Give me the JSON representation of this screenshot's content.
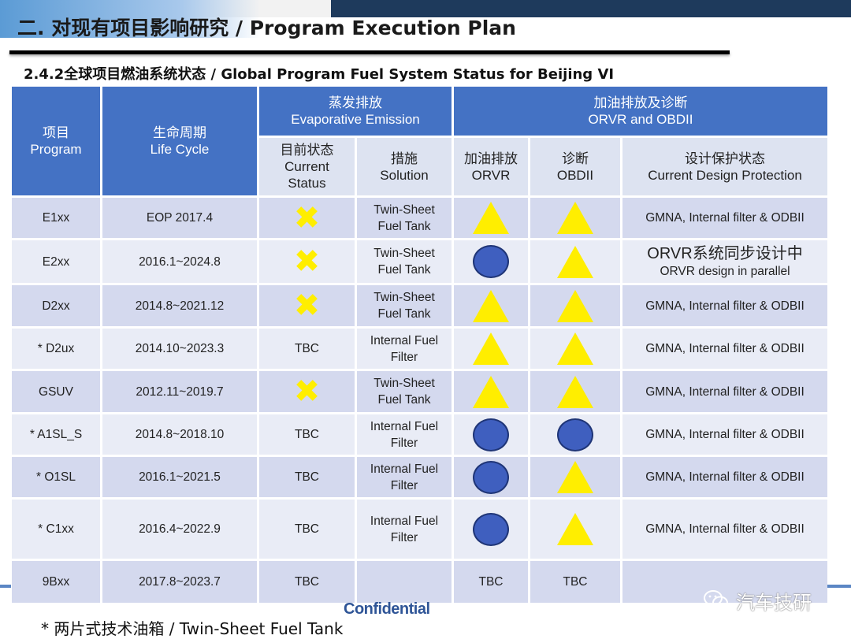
{
  "header": {
    "title": "二.  对现有项目影响研究 / Program Execution Plan"
  },
  "section": {
    "title": "2.4.2全球项目燃油系统状态 / Global Program Fuel System Status for Beijing VI"
  },
  "table": {
    "headers": {
      "program_zh": "项目",
      "program_en": "Program",
      "lifecycle_zh": "生命周期",
      "lifecycle_en": "Life Cycle",
      "evap_zh": "蒸发排放",
      "evap_en": "Evaporative Emission",
      "orvr_obd_zh": "加油排放及诊断",
      "orvr_obd_en": "ORVR and OBDII",
      "current_zh": "目前状态",
      "current_en_1": "Current",
      "current_en_2": "Status",
      "solution_zh": "措施",
      "solution_en": "Solution",
      "orvr_zh": "加油排放",
      "orvr_en": "ORVR",
      "obd_zh": "诊断",
      "obd_en": "OBDII",
      "design_zh": "设计保护状态",
      "design_en": "Current Design Protection"
    },
    "legend_symbols": {
      "cross": "✖",
      "triangle_color": "#ffee00",
      "circle_color": "#3f5fbf"
    },
    "rows": [
      {
        "program": "E1xx",
        "lifecycle": "EOP 2017.4",
        "status": "cross",
        "status_text": "",
        "solution_1": "Twin-Sheet",
        "solution_2": "Fuel Tank",
        "orvr": "triangle",
        "orvr_text": "",
        "obd": "triangle",
        "obd_text": "",
        "design": "GMNA, Internal filter & ODBII"
      },
      {
        "program": "E2xx",
        "lifecycle": "2016.1~2024.8",
        "status": "cross",
        "status_text": "",
        "solution_1": "Twin-Sheet",
        "solution_2": "Fuel Tank",
        "orvr": "circle",
        "orvr_text": "",
        "obd": "triangle",
        "obd_text": "",
        "design_zh": "ORVR系统同步设计中",
        "design_en": "ORVR design in parallel"
      },
      {
        "program": "D2xx",
        "lifecycle": "2014.8~2021.12",
        "status": "cross",
        "status_text": "",
        "solution_1": "Twin-Sheet",
        "solution_2": "Fuel Tank",
        "orvr": "triangle",
        "orvr_text": "",
        "obd": "triangle",
        "obd_text": "",
        "design": "GMNA, Internal filter & ODBII"
      },
      {
        "program": "* D2ux",
        "lifecycle": "2014.10~2023.3",
        "status": "text",
        "status_text": "TBC",
        "solution_1": "Internal Fuel",
        "solution_2": "Filter",
        "orvr": "triangle",
        "orvr_text": "",
        "obd": "triangle",
        "obd_text": "",
        "design": "GMNA, Internal filter & ODBII"
      },
      {
        "program": "GSUV",
        "lifecycle": "2012.11~2019.7",
        "status": "cross",
        "status_text": "",
        "solution_1": "Twin-Sheet",
        "solution_2": "Fuel Tank",
        "orvr": "triangle",
        "orvr_text": "",
        "obd": "triangle",
        "obd_text": "",
        "design": "GMNA, Internal filter & ODBII"
      },
      {
        "program": "* A1SL_S",
        "lifecycle": "2014.8~2018.10",
        "status": "text",
        "status_text": "TBC",
        "solution_1": "Internal Fuel",
        "solution_2": "Filter",
        "orvr": "circle",
        "orvr_text": "",
        "obd": "circle",
        "obd_text": "",
        "design": "GMNA, Internal filter & ODBII"
      },
      {
        "program": "* O1SL",
        "lifecycle": "2016.1~2021.5",
        "status": "text",
        "status_text": "TBC",
        "solution_1": "Internal Fuel",
        "solution_2": "Filter",
        "orvr": "circle",
        "orvr_text": "",
        "obd": "triangle",
        "obd_text": "",
        "design": "GMNA, Internal filter & ODBII"
      },
      {
        "program": "* C1xx",
        "lifecycle": "2016.4~2022.9",
        "status": "text",
        "status_text": "TBC",
        "solution_1": "Internal Fuel",
        "solution_2": "Filter",
        "orvr": "circle",
        "orvr_text": "",
        "obd": "triangle",
        "obd_text": "",
        "design": "GMNA, Internal filter & ODBII"
      },
      {
        "program": "9Bxx",
        "lifecycle": "2017.8~2023.7",
        "status": "text",
        "status_text": "TBC",
        "solution_1": "",
        "solution_2": "",
        "orvr": "text",
        "orvr_text": "TBC",
        "obd": "text",
        "obd_text": "TBC",
        "design": ""
      }
    ]
  },
  "footer": {
    "confidential": "Confidential",
    "footnote": "* 两片式技术油箱 / Twin-Sheet Fuel Tank",
    "watermark": "汽车技研"
  }
}
